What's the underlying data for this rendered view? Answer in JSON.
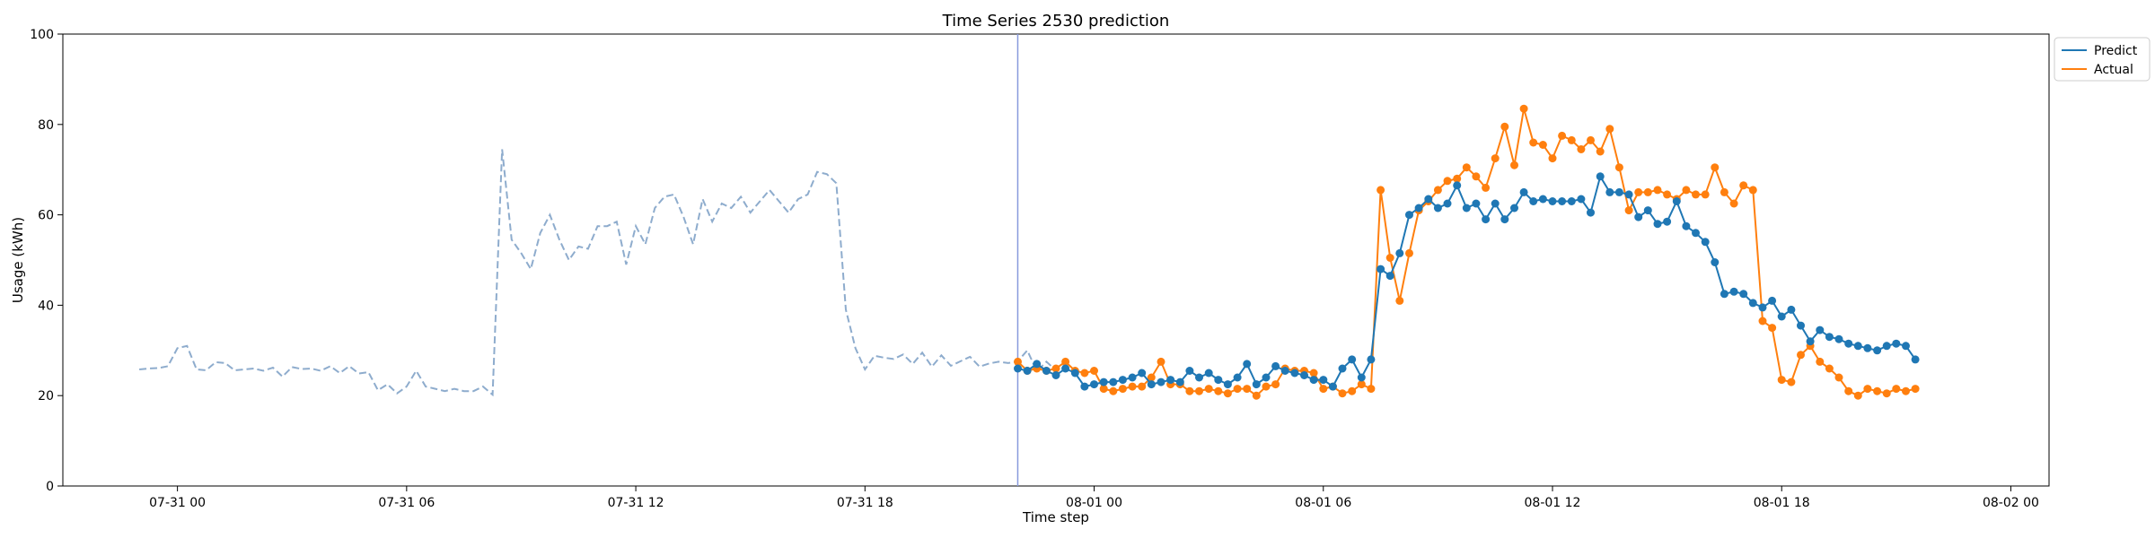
{
  "chart_data": {
    "type": "line",
    "title": "Time Series 2530 prediction",
    "xlabel": "Time step",
    "ylabel": "Usage (kWh)",
    "ylim": [
      0,
      100
    ],
    "yticks": [
      0,
      20,
      40,
      60,
      80,
      100
    ],
    "xlim": [
      "2023-07-30 21:00",
      "2023-08-02 01:00"
    ],
    "xticks": [
      {
        "label": "07-31 00",
        "t": "2023-07-31 00:00"
      },
      {
        "label": "07-31 06",
        "t": "2023-07-31 06:00"
      },
      {
        "label": "07-31 12",
        "t": "2023-07-31 12:00"
      },
      {
        "label": "07-31 18",
        "t": "2023-07-31 18:00"
      },
      {
        "label": "08-01 00",
        "t": "2023-08-01 00:00"
      },
      {
        "label": "08-01 06",
        "t": "2023-08-01 06:00"
      },
      {
        "label": "08-01 12",
        "t": "2023-08-01 12:00"
      },
      {
        "label": "08-01 18",
        "t": "2023-08-01 18:00"
      },
      {
        "label": "08-02 00",
        "t": "2023-08-02 00:00"
      }
    ],
    "history": {
      "start": "2023-07-30 23:00",
      "step_minutes": 15,
      "values": [
        25.8,
        26.0,
        26.1,
        26.5,
        30.5,
        31.0,
        25.8,
        25.6,
        27.4,
        27.2,
        25.6,
        25.8,
        26.0,
        25.5,
        26.2,
        24.2,
        26.3,
        25.9,
        26.0,
        25.5,
        26.5,
        25.0,
        26.5,
        24.9,
        25.2,
        21.2,
        22.5,
        20.5,
        22.0,
        25.5,
        22.0,
        21.5,
        21.0,
        21.5,
        21.0,
        21.0,
        22.0,
        20.2,
        74.5,
        54.5,
        51.5,
        48.0,
        56.0,
        60.0,
        54.5,
        50.0,
        53.0,
        52.5,
        57.5,
        57.5,
        58.5,
        49.0,
        57.5,
        53.5,
        61.5,
        64.0,
        64.5,
        59.5,
        53.5,
        63.5,
        58.5,
        62.5,
        61.5,
        64.0,
        60.5,
        63.0,
        65.5,
        63.0,
        60.5,
        63.5,
        64.5,
        69.5,
        69.0,
        67.0,
        39.0,
        30.5,
        25.8,
        28.8,
        28.4,
        28.1,
        29.1,
        27.0,
        29.5,
        26.4,
        28.9,
        26.6,
        27.6,
        28.6,
        26.4,
        27.1,
        27.5,
        27.2,
        27.6,
        30.0,
        25.4,
        27.5,
        25.6,
        26.8
      ]
    },
    "forecast_start_marker": "2023-07-31 22:00",
    "forecast": {
      "start": "2023-07-31 22:00",
      "step_minutes": 15
    },
    "series": [
      {
        "name": "Predict",
        "color": "#1f77b4",
        "values": [
          26.0,
          25.5,
          27.0,
          25.5,
          24.5,
          26.0,
          25.0,
          22.0,
          22.5,
          23.0,
          23.0,
          23.5,
          24.0,
          25.0,
          22.5,
          23.0,
          23.5,
          23.0,
          25.5,
          24.0,
          25.0,
          23.5,
          22.5,
          24.0,
          27.0,
          22.5,
          24.0,
          26.5,
          25.5,
          25.0,
          24.5,
          23.5,
          23.5,
          22.0,
          26.0,
          28.0,
          24.0,
          28.0,
          48.0,
          46.5,
          51.5,
          60.0,
          61.5,
          63.5,
          61.5,
          62.5,
          66.5,
          61.5,
          62.5,
          59.0,
          62.5,
          59.0,
          61.5,
          65.0,
          63.0,
          63.5,
          63.0,
          63.0,
          63.0,
          63.5,
          60.5,
          68.5,
          65.0,
          65.0,
          64.5,
          59.5,
          61.0,
          58.0,
          58.5,
          63.0,
          57.5,
          56.0,
          54.0,
          49.5,
          42.5,
          43.0,
          42.5,
          40.5,
          39.5,
          41.0,
          37.5,
          39.0,
          35.5,
          32.0,
          34.5,
          33.0,
          32.5,
          31.5,
          31.0,
          30.5,
          30.0,
          31.0,
          31.5,
          31.0,
          28.0
        ]
      },
      {
        "name": "Actual",
        "color": "#ff7f0e",
        "values": [
          27.5,
          25.5,
          26.0,
          25.5,
          26.0,
          27.5,
          25.5,
          25.0,
          25.5,
          21.5,
          21.0,
          21.5,
          22.0,
          22.0,
          24.0,
          27.5,
          22.5,
          22.5,
          21.0,
          21.0,
          21.5,
          21.0,
          20.5,
          21.5,
          21.5,
          20.0,
          22.0,
          22.5,
          26.0,
          25.5,
          25.5,
          25.0,
          21.5,
          22.0,
          20.5,
          21.0,
          22.5,
          21.5,
          65.5,
          50.5,
          41.0,
          51.5,
          61.0,
          63.0,
          65.5,
          67.5,
          68.0,
          70.5,
          68.5,
          66.0,
          72.5,
          79.5,
          71.0,
          83.5,
          76.0,
          75.5,
          72.5,
          77.5,
          76.5,
          74.5,
          76.5,
          74.0,
          79.0,
          70.5,
          61.0,
          65.0,
          65.0,
          65.5,
          64.5,
          63.5,
          65.5,
          64.5,
          64.5,
          70.5,
          65.0,
          62.5,
          66.5,
          65.5,
          36.5,
          35.0,
          23.5,
          23.0,
          29.0,
          31.0,
          27.5,
          26.0,
          24.0,
          21.0,
          20.0,
          21.5,
          21.0,
          20.5,
          21.5,
          21.0,
          21.5
        ]
      }
    ],
    "legend": {
      "position": "outside-top-right",
      "labels": [
        "Predict",
        "Actual"
      ]
    },
    "grid": false
  }
}
